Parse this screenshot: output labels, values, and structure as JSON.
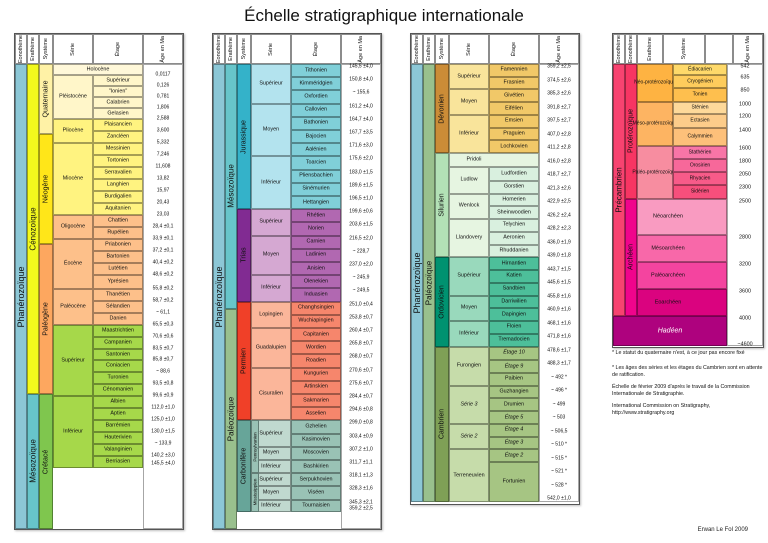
{
  "title": "Échelle stratigraphique internationale",
  "headers": {
    "eonotheme": "Eonothème",
    "erathem": "Erathème",
    "systeme": "Système",
    "serie": "Série",
    "etage": "Étage",
    "age": "Âge en Ma"
  },
  "panel1": {
    "eon": "Phanérozoïque",
    "eras": [
      "Cénozoïque",
      "Mésozoïque"
    ],
    "systems": [
      "Quaternaire",
      "Néogène",
      "Paléogène",
      "Crétacé"
    ],
    "series": [
      "Holocène",
      "Pléistocène",
      "Pliocène",
      "Miocène",
      "Oligocène",
      "Éocène",
      "Paléocène",
      "Supérieur",
      "Inférieur"
    ],
    "stages": [
      "Supérieur",
      "\"Ionien\"",
      "Calabrien",
      "Gelasien",
      "Plaisancien",
      "Zancléen",
      "Messinien",
      "Tortonien",
      "Serravalien",
      "Langhien",
      "Burdigalien",
      "Aquitanien",
      "Chattien",
      "Rupélien",
      "Priabonien",
      "Bartonien",
      "Lutétien",
      "Yprésien",
      "Thanétien",
      "Sélandien",
      "Danien",
      "Maastrichtien",
      "Campanien",
      "Santonien",
      "Coniacien",
      "Turonien",
      "Cénomanien",
      "Albien",
      "Aptien",
      "Barrémien",
      "Hauterivien",
      "Valanginien",
      "Berriasien"
    ],
    "ages": [
      "0,0117",
      "0,126",
      "0,781",
      "1,806",
      "2,588",
      "3,600",
      "5,332",
      "7,246",
      "11,608",
      "13,82",
      "15,97",
      "20,43",
      "23,03",
      "28,4 ±0,1",
      "33,9 ±0,1",
      "37,2 ±0,1",
      "40,4 ±0,2",
      "48,6 ±0,2",
      "55,8 ±0,2",
      "58,7 ±0,2",
      "~ 61,1",
      "65,5 ±0,3",
      "70,6 ±0,6",
      "83,5 ±0,7",
      "85,8 ±0,7",
      "~ 88,6",
      "93,5 ±0,8",
      "99,6 ±0,9",
      "112,0 ±1,0",
      "125,0 ±1,0",
      "130,0 ±1,5",
      "~ 133,9",
      "140,2 ±3,0",
      "145,5 ±4,0"
    ]
  },
  "panel2": {
    "eon": "Phanérozoïque",
    "eras": [
      "Mésozoïque",
      "Paléozoïque"
    ],
    "systems": [
      "Jurassique",
      "Trias",
      "Permien",
      "Carbonifère"
    ],
    "subsystems": [
      "Pennsylvanien",
      "Mississippien"
    ],
    "series": [
      "Supérieur",
      "Moyen",
      "Inférieur",
      "Supérieur",
      "Moyen",
      "Inférieur",
      "Lopingien",
      "Guadalupien",
      "Cisuralien",
      "Supérieur",
      "Moyen",
      "Inférieur",
      "Supérieur",
      "Moyen",
      "Inférieur"
    ],
    "stages": [
      "Tithonien",
      "Kimméridgien",
      "Oxfordien",
      "Callovien",
      "Bathonien",
      "Bajocien",
      "Aalénien",
      "Toarcien",
      "Pliensbachien",
      "Sinémurien",
      "Hettangien",
      "Rhétien",
      "Norien",
      "Carnien",
      "Ladinien",
      "Anisien",
      "Olenekien",
      "Induasien",
      "Changhsingien",
      "Wuchiapingien",
      "Capitanien",
      "Wordien",
      "Roadien",
      "Kungurien",
      "Artinskien",
      "Sakmarien",
      "Asselien",
      "Gzhelien",
      "Kasimovien",
      "Moscovien",
      "Bashkirien",
      "Serpukhovien",
      "Viséen",
      "Tournaisien"
    ],
    "ages": [
      "145,5 ±4,0",
      "150,8 ±4,0",
      "~ 155,6",
      "161,2 ±4,0",
      "164,7 ±4,0",
      "167,7 ±3,5",
      "171,6 ±3,0",
      "175,6 ±2,0",
      "183,0 ±1,5",
      "189,6 ±1,5",
      "196,5 ±1,0",
      "199,6 ±0,6",
      "203,6 ±1,5",
      "216,5 ±2,0",
      "~ 228,7",
      "237,0 ±2,0",
      "~ 245,9",
      "~ 249,5",
      "251,0 ±0,4",
      "253,8 ±0,7",
      "260,4 ±0,7",
      "265,8 ±0,7",
      "268,0 ±0,7",
      "270,6 ±0,7",
      "275,6 ±0,7",
      "284,4 ±0,7",
      "294,6 ±0,8",
      "299,0 ±0,8",
      "303,4 ±0,9",
      "307,2 ±1,0",
      "311,7 ±1,1",
      "318,1 ±1,3",
      "328,3 ±1,6",
      "345,3 ±2,1",
      "359,2 ±2,5"
    ]
  },
  "panel3": {
    "eon": "Phanérozoïque",
    "era": "Paléozoïque",
    "systems": [
      "Dévonien",
      "Silurien",
      "Ordovicien",
      "Cambrien"
    ],
    "series": [
      "Supérieur",
      "Moyen",
      "Inférieur",
      "Pridoli",
      "Ludlow",
      "Wenlock",
      "Llandovery",
      "Supérieur",
      "Moyen",
      "Inférieur",
      "Furongien",
      "Série 3",
      "Série 2",
      "Terreneuvien"
    ],
    "stages": [
      "Famennien",
      "Frasnien",
      "Givétien",
      "Eifélien",
      "Emsien",
      "Praguien",
      "Lochkovien",
      "Ludfordien",
      "Gorstien",
      "Homerien",
      "Sheinwoodien",
      "Telychien",
      "Aeronien",
      "Rhuddanien",
      "Hirnantien",
      "Katien",
      "Sandbien",
      "Darriwilien",
      "Dapingien",
      "Floien",
      "Tremadocien",
      "Étage 10",
      "Étage 9",
      "Paibien",
      "Guzhangien",
      "Drumien",
      "Étage 5",
      "Étage 4",
      "Étage 3",
      "Étage 2",
      "Fortunien"
    ],
    "ages": [
      "359,2 ±2,5",
      "374,5 ±2,6",
      "385,3 ±2,6",
      "391,8 ±2,7",
      "397,5 ±2,7",
      "407,0 ±2,8",
      "411,2 ±2,8",
      "416,0 ±2,8",
      "418,7 ±2,7",
      "421,3 ±2,6",
      "422,9 ±2,5",
      "426,2 ±2,4",
      "428,2 ±2,3",
      "436,0 ±1,9",
      "439,0 ±1,8",
      "443,7 ±1,5",
      "445,6 ±1,5",
      "455,8 ±1,6",
      "460,9 ±1,6",
      "468,1 ±1,6",
      "471,8 ±1,6",
      "478,6 ±1,7",
      "488,3 ±1,7",
      "~ 492 *",
      "~ 496 *",
      "~ 499",
      "~ 503",
      "~ 506,5",
      "~ 510 *",
      "~ 515 *",
      "~ 521 *",
      "~ 528 *",
      "542,0 ±1,0"
    ]
  },
  "panel4": {
    "eon_super": "Précambrien",
    "eons": [
      "Protérozoïque",
      "Archéen",
      "Hadéen"
    ],
    "eras": [
      "Néo-protérozoïque",
      "Méso-protérozoïque",
      "Paléo-protérozoïque",
      "Néoarchéen",
      "Mésoarchéen",
      "Paléoarchéen",
      "Eoarchéen"
    ],
    "systems": [
      "Édiacarien",
      "Cryogénien",
      "Tonien",
      "Sténien",
      "Ectasien",
      "Calymmien",
      "Stathérien",
      "Orosirien",
      "Rhyacien",
      "Sidérien"
    ],
    "ages": [
      "542",
      "635",
      "850",
      "1000",
      "1200",
      "1400",
      "1600",
      "1800",
      "2050",
      "2300",
      "2500",
      "2800",
      "3200",
      "3600",
      "4000",
      "~4600"
    ]
  },
  "notes": [
    "* Le statut du quaternaire n'est, à ce jour pas encore fixé",
    "* Les âges des séries et les étages du Cambrien sont en attente de ratification.",
    "Échelle de février 2009 d'après le travail de la Commission Internationale de Stratigraphie.",
    "International Commission on Stratigraphy, http://www.stratigraphy.org"
  ],
  "author": "Erwan Le Fol 2009"
}
